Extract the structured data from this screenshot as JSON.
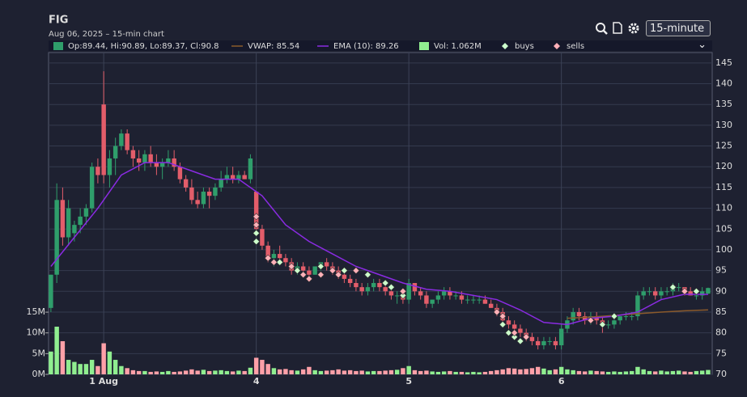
{
  "chart_data": {
    "type": "candlestick",
    "title": "FIG",
    "subtitle": "Aug 06, 2025 – 15-min chart",
    "interval": "15-minute",
    "ohlc_label": "Op:89.44, Hi:90.89, Lo:89.37, Cl:90.8",
    "volume_label": "Vol: 1.062M",
    "up_color": "#2f9e6b",
    "down_color": "#e35d6a",
    "vol_up_color": "#90ee90",
    "vol_down_color": "#ffa0a8",
    "x": [
      0,
      1,
      2,
      3,
      4,
      5,
      6,
      7,
      8,
      9,
      10,
      11,
      12,
      13,
      14,
      15,
      16,
      17,
      18,
      19,
      20,
      21,
      22,
      23,
      24,
      25,
      26,
      27,
      28,
      29,
      30,
      31,
      32,
      33,
      34,
      35,
      36,
      37,
      38,
      39,
      40,
      41,
      42,
      43,
      44,
      45,
      46,
      47,
      48,
      49,
      50,
      51,
      52,
      53,
      54,
      55,
      56,
      57,
      58,
      59,
      60,
      61,
      62,
      63,
      64,
      65,
      66,
      67,
      68,
      69,
      70,
      71,
      72,
      73,
      74,
      75,
      76,
      77,
      78,
      79,
      80,
      81,
      82,
      83,
      84,
      85,
      86,
      87,
      88,
      89,
      90,
      91,
      92,
      93,
      94,
      95,
      96,
      97,
      98,
      99,
      100,
      101,
      102,
      103,
      104,
      105,
      106,
      107,
      108,
      109,
      110,
      111,
      112
    ],
    "candles": [
      [
        86,
        94,
        85,
        94
      ],
      [
        94,
        116,
        92,
        112
      ],
      [
        112,
        115,
        101,
        103
      ],
      [
        103,
        112,
        101,
        110
      ],
      [
        104,
        107,
        102,
        106
      ],
      [
        106,
        110,
        104,
        108
      ],
      [
        108,
        111,
        106,
        110
      ],
      [
        110,
        121,
        109,
        120
      ],
      [
        120,
        122,
        116,
        118
      ],
      [
        135,
        143,
        116,
        118
      ],
      [
        118,
        124,
        115,
        122
      ],
      [
        122,
        127,
        118,
        125
      ],
      [
        125,
        129,
        124,
        128
      ],
      [
        128,
        129,
        123,
        124
      ],
      [
        124,
        125,
        120,
        122
      ],
      [
        122,
        124,
        119,
        121
      ],
      [
        121,
        124,
        119,
        123
      ],
      [
        123,
        125,
        120,
        121
      ],
      [
        121,
        123,
        118,
        120
      ],
      [
        120,
        122,
        117,
        121
      ],
      [
        121,
        124,
        120,
        122
      ],
      [
        122,
        124,
        119,
        120
      ],
      [
        120,
        121,
        116,
        117
      ],
      [
        117,
        118,
        114,
        115
      ],
      [
        115,
        117,
        111,
        112
      ],
      [
        112,
        114,
        110,
        111
      ],
      [
        111,
        115,
        110,
        114
      ],
      [
        114,
        115,
        110,
        113
      ],
      [
        113,
        116,
        112,
        115
      ],
      [
        115,
        119,
        114,
        117
      ],
      [
        117,
        120,
        116,
        118
      ],
      [
        118,
        120,
        116,
        117
      ],
      [
        117,
        119,
        116,
        118
      ],
      [
        118,
        119,
        117,
        117
      ],
      [
        117,
        123,
        116,
        122
      ],
      [
        114,
        114,
        104,
        105
      ],
      [
        105,
        106,
        100,
        101
      ],
      [
        101,
        102,
        97,
        98
      ],
      [
        98,
        100,
        96,
        99
      ],
      [
        99,
        101,
        97,
        98
      ],
      [
        98,
        99,
        96,
        97
      ],
      [
        97,
        98,
        94,
        95
      ],
      [
        95,
        97,
        94,
        96
      ],
      [
        96,
        97,
        94,
        95
      ],
      [
        95,
        96,
        93,
        94
      ],
      [
        94,
        96,
        94,
        96
      ],
      [
        96,
        97,
        95,
        97
      ],
      [
        97,
        98,
        95,
        96
      ],
      [
        96,
        97,
        94,
        95
      ],
      [
        95,
        96,
        93,
        94
      ],
      [
        94,
        95,
        92,
        93
      ],
      [
        93,
        94,
        91,
        92
      ],
      [
        92,
        93,
        90,
        91
      ],
      [
        91,
        92,
        89,
        90
      ],
      [
        90,
        92,
        89,
        91
      ],
      [
        91,
        93,
        90,
        92
      ],
      [
        92,
        93,
        90,
        91
      ],
      [
        91,
        92,
        89,
        90
      ],
      [
        90,
        91,
        88,
        89
      ],
      [
        89,
        90,
        87,
        89
      ],
      [
        89,
        90,
        87,
        88
      ],
      [
        88,
        93,
        87,
        92
      ],
      [
        92,
        92,
        89,
        90
      ],
      [
        90,
        91,
        88,
        89
      ],
      [
        89,
        90,
        86,
        87
      ],
      [
        87,
        88,
        86,
        88
      ],
      [
        88,
        90,
        87,
        89
      ],
      [
        89,
        91,
        88,
        90
      ],
      [
        90,
        91,
        88,
        89
      ],
      [
        89,
        90,
        88,
        89
      ],
      [
        89,
        90,
        87,
        88
      ],
      [
        88,
        89,
        87,
        88
      ],
      [
        88,
        89,
        87,
        88
      ],
      [
        88,
        89,
        87,
        88
      ],
      [
        88,
        89,
        87,
        87
      ],
      [
        87,
        88,
        86,
        86
      ],
      [
        86,
        87,
        84,
        85
      ],
      [
        85,
        86,
        82,
        83
      ],
      [
        83,
        84,
        81,
        82
      ],
      [
        82,
        83,
        80,
        81
      ],
      [
        81,
        82,
        79,
        80
      ],
      [
        80,
        81,
        78,
        79
      ],
      [
        79,
        80,
        77,
        78
      ],
      [
        78,
        79,
        76,
        77
      ],
      [
        77,
        79,
        76,
        78
      ],
      [
        78,
        79,
        77,
        78
      ],
      [
        78,
        79,
        76,
        77
      ],
      [
        77,
        82,
        76,
        81
      ],
      [
        81,
        84,
        80,
        83
      ],
      [
        83,
        86,
        82,
        85
      ],
      [
        85,
        86,
        83,
        84
      ],
      [
        84,
        85,
        82,
        83
      ],
      [
        83,
        85,
        82,
        84
      ],
      [
        84,
        85,
        82,
        83
      ],
      [
        83,
        84,
        80,
        82
      ],
      [
        82,
        83,
        81,
        82
      ],
      [
        82,
        84,
        81,
        83
      ],
      [
        83,
        84,
        82,
        84
      ],
      [
        84,
        85,
        83,
        84
      ],
      [
        84,
        85,
        83,
        84
      ],
      [
        84,
        90,
        83,
        89
      ],
      [
        89,
        91,
        88,
        90
      ],
      [
        90,
        91,
        89,
        90
      ],
      [
        90,
        91,
        88,
        89
      ],
      [
        89,
        91,
        88,
        90
      ],
      [
        90,
        91,
        89,
        90
      ],
      [
        90,
        92,
        89,
        91
      ],
      [
        91,
        92,
        90,
        91
      ],
      [
        91,
        91,
        89,
        90
      ],
      [
        90,
        91,
        89,
        89
      ],
      [
        89,
        90,
        88,
        89
      ],
      [
        89,
        91,
        88,
        90
      ],
      [
        89.44,
        90.89,
        89.37,
        90.8
      ]
    ],
    "volume": [
      5.5,
      11.5,
      8,
      3.5,
      3,
      2.5,
      2.5,
      3.5,
      2,
      7.5,
      5.5,
      3.5,
      2,
      1.5,
      1,
      0.8,
      0.8,
      0.6,
      0.7,
      0.6,
      0.8,
      0.6,
      0.7,
      0.9,
      1.2,
      0.9,
      1.1,
      0.8,
      0.9,
      1.0,
      0.8,
      0.7,
      0.9,
      0.8,
      1.6,
      4,
      3.5,
      2.5,
      1.5,
      1.2,
      1.3,
      1.0,
      0.9,
      1.2,
      1.8,
      1.0,
      0.8,
      0.9,
      1.0,
      1.2,
      0.9,
      1.0,
      0.8,
      0.9,
      0.7,
      0.8,
      0.8,
      0.9,
      1.0,
      1.1,
      1.5,
      2.0,
      1.0,
      0.8,
      0.9,
      0.7,
      0.6,
      0.7,
      0.8,
      0.6,
      0.6,
      0.5,
      0.6,
      0.5,
      0.6,
      0.8,
      1.0,
      1.2,
      1.5,
      1.4,
      1.2,
      1.3,
      1.5,
      1.8,
      1.4,
      1.0,
      1.2,
      1.8,
      1.2,
      1.0,
      0.8,
      0.7,
      0.9,
      0.8,
      0.7,
      0.6,
      0.7,
      0.6,
      0.7,
      0.8,
      1.8,
      1.2,
      0.8,
      0.7,
      0.9,
      0.7,
      0.8,
      0.9,
      0.7,
      0.6,
      0.8,
      0.9,
      1.062
    ],
    "lines": [
      {
        "name": "VWAP: 85.54",
        "color": "#8b5a2b",
        "x": [
          88,
          92,
          96,
          100,
          104,
          108,
          112
        ],
        "values": [
          83.5,
          83.8,
          84.2,
          84.6,
          85,
          85.3,
          85.54
        ]
      },
      {
        "name": "EMA (10): 89.26",
        "color": "#8a2be2",
        "x": [
          0,
          4,
          8,
          12,
          16,
          20,
          24,
          28,
          32,
          36,
          40,
          44,
          48,
          52,
          56,
          60,
          64,
          68,
          72,
          76,
          80,
          84,
          88,
          92,
          96,
          100,
          104,
          108,
          112
        ],
        "values": [
          96,
          103,
          110,
          118,
          121,
          121,
          119,
          117,
          117,
          113,
          106,
          102,
          99,
          96,
          94,
          92,
          90.5,
          90,
          89,
          88,
          85.5,
          82.5,
          82,
          83.5,
          84,
          85,
          88,
          89.3,
          89.26
        ]
      }
    ],
    "markers": [
      {
        "name": "buys",
        "color": "#ccffcc",
        "x": [
          35,
          35,
          39,
          42,
          46,
          50,
          54,
          57,
          58,
          60,
          77,
          78,
          79,
          80,
          94,
          96,
          106,
          110
        ],
        "values": [
          104,
          102,
          97,
          95,
          96,
          95,
          94,
          92,
          91,
          89,
          82,
          80,
          79,
          78,
          82,
          84,
          91,
          90
        ]
      },
      {
        "name": "sells",
        "color": "#ffb0b8",
        "x": [
          35,
          35,
          37,
          38,
          41,
          43,
          44,
          46,
          48,
          49,
          52,
          60,
          76,
          77,
          79,
          81,
          92,
          108
        ],
        "values": [
          108,
          106,
          98,
          97,
          96,
          94,
          93,
          94,
          95,
          94,
          95,
          90,
          85,
          84,
          80,
          79,
          83,
          90
        ]
      }
    ],
    "xlim": [
      -0.4,
      112.7
    ],
    "xticks": [
      {
        "value": 9,
        "label": "1 Aug"
      },
      {
        "value": 35,
        "label": "4"
      },
      {
        "value": 61,
        "label": "5"
      },
      {
        "value": 87,
        "label": "6"
      }
    ],
    "ylim": [
      70,
      147.5
    ],
    "yticks": [
      70,
      75,
      80,
      85,
      90,
      95,
      100,
      105,
      110,
      115,
      120,
      125,
      130,
      135,
      140,
      145
    ],
    "y2lim": [
      0,
      77.6
    ],
    "y2ticks": [
      {
        "value": 0,
        "label": "0M"
      },
      {
        "value": 5,
        "label": "5M"
      },
      {
        "value": 10,
        "label": "10M"
      },
      {
        "value": 15,
        "label": "15M"
      }
    ]
  }
}
